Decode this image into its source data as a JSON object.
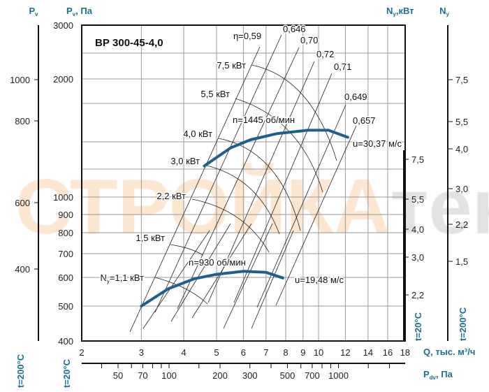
{
  "watermark": {
    "part1": "СТРОЙКА",
    "part2": "тека",
    "color1": "#fde6cf",
    "color2": "#e2e2e2"
  },
  "chart_data": {
    "type": "line",
    "title": "ВР 300-45-4,0",
    "x_scale": "log",
    "y_scale": "log",
    "xlim": [
      2,
      18
    ],
    "ylim": [
      400,
      3000
    ],
    "grid": true,
    "xlabel": "Q, тыс. м³/ч",
    "x_ticks": [
      2,
      3,
      4,
      5,
      6,
      7,
      8,
      9,
      10,
      12,
      14,
      16,
      18
    ],
    "y_label": {
      "main": "P",
      "sub": "v",
      "suffix": ", Па"
    },
    "y_ticks": [
      400,
      500,
      600,
      700,
      800,
      900,
      1000,
      2000,
      3000
    ],
    "pdv_axis": {
      "label_main": "P",
      "label_sub": "dv",
      "label_suffix": ", Па",
      "ticks": [
        50,
        70,
        100,
        200,
        300,
        500,
        700,
        1000
      ],
      "minor_ticks": [
        40,
        60,
        80,
        90,
        150,
        400,
        600,
        800,
        900,
        1500,
        2000
      ]
    },
    "pv_200_axis": {
      "label_main": "P",
      "label_sub": "v",
      "ticks": [
        "1000",
        "800",
        "600",
        "400"
      ],
      "temp": "t=200°C"
    },
    "main_axis_temp": "t=20°C",
    "ny_20_axis": {
      "ticks": [
        "7,5",
        "5,5",
        "4,0",
        "3,0",
        "2,2"
      ],
      "temp": "t=20°C",
      "label_main": "N",
      "label_sub": "y",
      "label_suffix": ",кВт"
    },
    "ny_200_axis": {
      "ticks": [
        "7,5",
        "5,5",
        "4,0",
        "3,0",
        "2,2",
        "1,5"
      ],
      "temp": "t=200°C",
      "label_main": "N",
      "label_sub": "y"
    },
    "series": [
      {
        "name": "n=1445 об/мин",
        "tip_speed": "u=30,37 м/с",
        "color": "#1f5f8b",
        "points": [
          [
            4.6,
            1200
          ],
          [
            5.5,
            1335
          ],
          [
            6.3,
            1400
          ],
          [
            7.5,
            1450
          ],
          [
            9.3,
            1480
          ],
          [
            10.7,
            1480
          ],
          [
            12.2,
            1420
          ]
        ]
      },
      {
        "name": "n=930 об/мин",
        "tip_speed": "u=19,48 м/с",
        "color": "#1f5f8b",
        "points": [
          [
            3.0,
            500
          ],
          [
            3.6,
            558
          ],
          [
            4.3,
            595
          ],
          [
            5.0,
            612
          ],
          [
            6.0,
            624
          ],
          [
            7.0,
            620
          ],
          [
            7.85,
            598
          ]
        ]
      }
    ],
    "efficiency_lines": [
      "η=0,59",
      "0,646",
      "0,70",
      "0,72",
      "0,71",
      "0,649",
      "0,657"
    ],
    "power_lines": [
      {
        "label": "7,5 кВт"
      },
      {
        "label": "5,5 кВт"
      },
      {
        "label": "4,0 кВт"
      },
      {
        "label": "3,0 кВт"
      },
      {
        "label": "2,2 кВт"
      },
      {
        "label": "1,5 кВт"
      },
      {
        "label_main": "N",
        "label_sub": "y",
        "label_suffix": "=1,1 кВт"
      }
    ]
  }
}
